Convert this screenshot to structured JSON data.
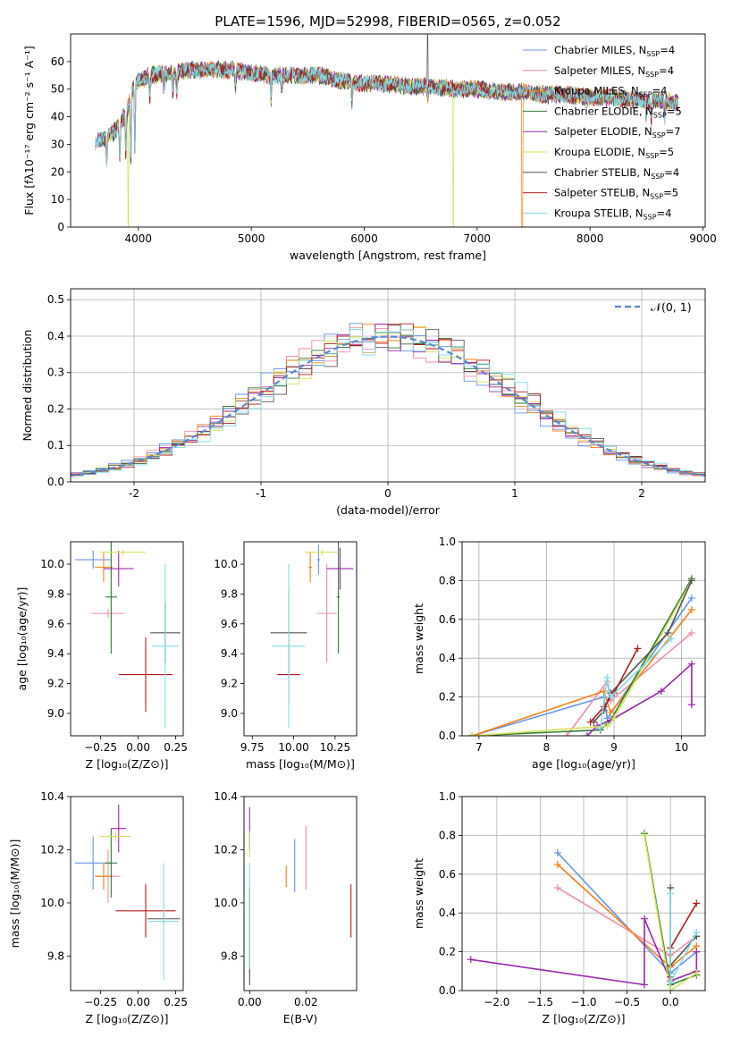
{
  "figure": {
    "title": "PLATE=1596, MJD=52998, FIBERID=0565, z=0.052"
  },
  "colors": {
    "chabrier_miles": "#6495ed",
    "salpeter_miles": "#f08cac",
    "kroupa_miles": "#ff7f0e",
    "chabrier_elodie": "#2e7d32",
    "salpeter_elodie": "#9c27b0",
    "kroupa_elodie": "#d4e157",
    "chabrier_stelib": "#555555",
    "salpeter_stelib": "#b71c1c",
    "kroupa_stelib": "#80deea"
  },
  "legend_spectrum": [
    {
      "key": "chabrier_miles",
      "label": "Chabrier MILES, N",
      "sub": "SSP",
      "tail": "=4"
    },
    {
      "key": "salpeter_miles",
      "label": "Salpeter MILES, N",
      "sub": "SSP",
      "tail": "=4"
    },
    {
      "key": "kroupa_miles",
      "label": "Kroupa MILES, N",
      "sub": "SSP",
      "tail": "=4"
    },
    {
      "key": "chabrier_elodie",
      "label": "Chabrier ELODIE, N",
      "sub": "SSP",
      "tail": "=5"
    },
    {
      "key": "salpeter_elodie",
      "label": "Salpeter ELODIE, N",
      "sub": "SSP",
      "tail": "=7"
    },
    {
      "key": "kroupa_elodie",
      "label": "Kroupa ELODIE, N",
      "sub": "SSP",
      "tail": "=5"
    },
    {
      "key": "chabrier_stelib",
      "label": "Chabrier STELIB, N",
      "sub": "SSP",
      "tail": "=4"
    },
    {
      "key": "salpeter_stelib",
      "label": "Salpeter STELIB, N",
      "sub": "SSP",
      "tail": "=5"
    },
    {
      "key": "kroupa_stelib",
      "label": "Kroupa STELIB, N",
      "sub": "SSP",
      "tail": "=4"
    }
  ],
  "legend_hist": {
    "label": "𝒩(0, 1)"
  },
  "chart_data": [
    {
      "id": "spectrum",
      "type": "line",
      "xlabel": "wavelength [Angstrom, rest frame]",
      "ylabel": "Flux [fλ10⁻¹⁷ erg cm⁻² s⁻¹ A⁻¹]",
      "xlim": [
        3400,
        9020
      ],
      "ylim": [
        0,
        70
      ],
      "xticks": [
        4000,
        5000,
        6000,
        7000,
        8000,
        9000
      ],
      "yticks": [
        0,
        10,
        20,
        30,
        40,
        50,
        60
      ],
      "x_range": [
        3620,
        8780
      ],
      "continuum": [
        [
          3620,
          31
        ],
        [
          3700,
          32
        ],
        [
          3800,
          35
        ],
        [
          3900,
          42
        ],
        [
          3960,
          52
        ],
        [
          4100,
          55
        ],
        [
          4300,
          56
        ],
        [
          4500,
          57
        ],
        [
          4800,
          57
        ],
        [
          5000,
          56
        ],
        [
          5200,
          55
        ],
        [
          5400,
          55
        ],
        [
          5600,
          55
        ],
        [
          5800,
          53
        ],
        [
          6000,
          52
        ],
        [
          6200,
          52
        ],
        [
          6400,
          51
        ],
        [
          6600,
          51
        ],
        [
          6800,
          50
        ],
        [
          7000,
          50
        ],
        [
          7200,
          49
        ],
        [
          7400,
          49
        ],
        [
          7600,
          48
        ],
        [
          7800,
          48
        ],
        [
          8000,
          47
        ],
        [
          8200,
          47
        ],
        [
          8400,
          46
        ],
        [
          8600,
          46
        ],
        [
          8780,
          45
        ]
      ],
      "absorption_lines": [
        [
          3720,
          10
        ],
        [
          3835,
          12
        ],
        [
          3889,
          14
        ],
        [
          3934,
          25
        ],
        [
          3969,
          26
        ],
        [
          4102,
          8
        ],
        [
          4227,
          6
        ],
        [
          4305,
          8
        ],
        [
          4340,
          7
        ],
        [
          4861,
          6
        ],
        [
          5175,
          9
        ],
        [
          5270,
          5
        ],
        [
          5892,
          7
        ],
        [
          6563,
          4
        ],
        [
          8498,
          6
        ],
        [
          8542,
          8
        ],
        [
          8662,
          7
        ]
      ],
      "spikes": [
        {
          "x": 6563,
          "y": 70,
          "series": "chabrier_stelib"
        }
      ],
      "dropouts": [
        {
          "x": 3910,
          "series": "kroupa_elodie"
        },
        {
          "x": 6790,
          "series": "kroupa_elodie"
        },
        {
          "x": 7400,
          "series": "kroupa_miles"
        }
      ]
    },
    {
      "id": "residuals",
      "type": "step",
      "xlabel": "(data-model)/error",
      "ylabel": "Normed distribution",
      "xlim": [
        -2.5,
        2.5
      ],
      "ylim": [
        0,
        0.53
      ],
      "xticks": [
        -2,
        -1,
        0,
        1,
        2
      ],
      "yticks": [
        0.0,
        0.1,
        0.2,
        0.3,
        0.4,
        0.5
      ],
      "grid": true,
      "legend": "top-right",
      "bin_width": 0.1
    },
    {
      "id": "z_age",
      "type": "errorbar",
      "xlabel": "Z [log₁₀(Z/Z⊙)]",
      "ylabel": "age  [log₁₀(age/yr)]",
      "xlim": [
        -0.45,
        0.3
      ],
      "ylim": [
        8.85,
        10.15
      ],
      "xticks": [
        -0.25,
        0.0,
        0.25
      ],
      "xticklabels": [
        "−0.25",
        "0.00",
        "0.25"
      ],
      "yticks": [
        9.0,
        9.2,
        9.4,
        9.6,
        9.8,
        10.0
      ],
      "points": [
        {
          "s": "chabrier_miles",
          "x": -0.3,
          "xe": 0.12,
          "y": 10.03,
          "ye": 0.06
        },
        {
          "s": "salpeter_miles",
          "x": -0.2,
          "xe": 0.11,
          "y": 9.67,
          "ye": 0.03
        },
        {
          "s": "kroupa_miles",
          "x": -0.23,
          "xe": 0.06,
          "y": 9.98,
          "ye": 0.1
        },
        {
          "s": "chabrier_elodie",
          "x": -0.18,
          "xe": 0.04,
          "y": 9.78,
          "ye": 0.38
        },
        {
          "s": "salpeter_elodie",
          "x": -0.13,
          "xe": 0.1,
          "y": 9.97,
          "ye": 0.12
        },
        {
          "s": "kroupa_elodie",
          "x": -0.1,
          "xe": 0.15,
          "y": 10.08,
          "ye": 0.02
        },
        {
          "s": "chabrier_stelib",
          "x": 0.18,
          "xe": 0.1,
          "y": 9.54,
          "ye": 0.2
        },
        {
          "s": "salpeter_stelib",
          "x": 0.05,
          "xe": 0.18,
          "y": 9.26,
          "ye": 0.25
        },
        {
          "s": "kroupa_stelib",
          "x": 0.18,
          "xe": 0.09,
          "y": 9.45,
          "ye": 0.55
        }
      ]
    },
    {
      "id": "mass_age",
      "type": "errorbar",
      "xlabel": "mass [log₁₀(M/M⊙)]",
      "ylabel": "",
      "xlim": [
        9.7,
        10.38
      ],
      "ylim": [
        8.85,
        10.15
      ],
      "xticks": [
        9.75,
        10.0,
        10.25
      ],
      "xticklabels": [
        "9.75",
        "10.00",
        "10.25"
      ],
      "yticks": [
        9.0,
        9.2,
        9.4,
        9.6,
        9.8,
        10.0
      ],
      "points": [
        {
          "s": "chabrier_miles",
          "x": 10.15,
          "xe": 0.01,
          "y": 10.03,
          "ye": 0.1
        },
        {
          "s": "salpeter_miles",
          "x": 10.2,
          "xe": 0.06,
          "y": 9.67,
          "ye": 0.33
        },
        {
          "s": "kroupa_miles",
          "x": 10.1,
          "xe": 0.01,
          "y": 9.98,
          "ye": 0.1
        },
        {
          "s": "chabrier_elodie",
          "x": 10.27,
          "xe": 0.01,
          "y": 9.78,
          "ye": 0.38
        },
        {
          "s": "salpeter_elodie",
          "x": 10.28,
          "xe": 0.08,
          "y": 9.97,
          "ye": 0.14
        },
        {
          "s": "kroupa_elodie",
          "x": 10.17,
          "xe": 0.1,
          "y": 10.08,
          "ye": 0.02
        },
        {
          "s": "chabrier_stelib",
          "x": 9.97,
          "xe": 0.11,
          "y": 9.54,
          "ye": 0.3
        },
        {
          "s": "salpeter_stelib",
          "x": 9.97,
          "xe": 0.07,
          "y": 9.26,
          "ye": 0.2
        },
        {
          "s": "kroupa_stelib",
          "x": 9.97,
          "xe": 0.1,
          "y": 9.45,
          "ye": 0.55
        }
      ]
    },
    {
      "id": "age_weight",
      "type": "line",
      "xlabel": "age  [log₁₀(age/yr)]",
      "ylabel": "mass weight",
      "xlim": [
        6.75,
        10.35
      ],
      "ylim": [
        0,
        1.0
      ],
      "xticks": [
        7,
        8,
        9,
        10
      ],
      "yticks": [
        0.0,
        0.2,
        0.4,
        0.6,
        0.8,
        1.0
      ],
      "grid": true,
      "series": [
        {
          "s": "chabrier_miles",
          "points": [
            [
              6.9,
              0.0
            ],
            [
              8.85,
              0.2
            ],
            [
              8.9,
              0.09
            ],
            [
              10.15,
              0.71
            ]
          ]
        },
        {
          "s": "salpeter_miles",
          "points": [
            [
              8.3,
              0.0
            ],
            [
              8.9,
              0.28
            ],
            [
              8.95,
              0.18
            ],
            [
              10.15,
              0.53
            ]
          ]
        },
        {
          "s": "kroupa_miles",
          "points": [
            [
              6.9,
              0.0
            ],
            [
              8.85,
              0.23
            ],
            [
              8.95,
              0.12
            ],
            [
              10.15,
              0.65
            ]
          ]
        },
        {
          "s": "chabrier_elodie",
          "points": [
            [
              6.9,
              0.0
            ],
            [
              8.8,
              0.03
            ],
            [
              8.95,
              0.08
            ],
            [
              10.15,
              0.81
            ]
          ]
        },
        {
          "s": "salpeter_elodie",
          "points": [
            [
              8.6,
              0.0
            ],
            [
              8.75,
              0.05
            ],
            [
              8.95,
              0.08
            ],
            [
              9.7,
              0.23
            ],
            [
              10.15,
              0.37
            ],
            [
              10.15,
              0.16
            ]
          ]
        },
        {
          "s": "kroupa_elodie",
          "points": [
            [
              6.9,
              0.0
            ],
            [
              8.9,
              0.05
            ],
            [
              9.0,
              0.09
            ],
            [
              10.15,
              0.8
            ]
          ]
        },
        {
          "s": "chabrier_stelib",
          "points": [
            [
              8.7,
              0.07
            ],
            [
              8.85,
              0.13
            ],
            [
              8.95,
              0.22
            ],
            [
              9.8,
              0.53
            ],
            [
              10.15,
              0.8
            ]
          ]
        },
        {
          "s": "salpeter_stelib",
          "points": [
            [
              8.65,
              0.07
            ],
            [
              8.85,
              0.15
            ],
            [
              9.0,
              0.22
            ],
            [
              9.35,
              0.45
            ]
          ]
        },
        {
          "s": "kroupa_stelib",
          "points": [
            [
              8.8,
              0.04
            ],
            [
              8.9,
              0.3
            ],
            [
              8.95,
              0.2
            ],
            [
              9.85,
              0.5
            ]
          ]
        }
      ]
    },
    {
      "id": "z_mass",
      "type": "errorbar",
      "xlabel": "Z [log₁₀(Z/Z⊙)]",
      "ylabel": "mass [log₁₀(M/M⊙)]",
      "xlim": [
        -0.45,
        0.3
      ],
      "ylim": [
        9.67,
        10.4
      ],
      "xticks": [
        -0.25,
        0.0,
        0.25
      ],
      "xticklabels": [
        "−0.25",
        "0.00",
        "0.25"
      ],
      "yticks": [
        9.8,
        10.0,
        10.2,
        10.4
      ],
      "yticklabels": [
        "9.8",
        "10.0",
        "10.2",
        "10.4"
      ],
      "points": [
        {
          "s": "chabrier_miles",
          "x": -0.3,
          "xe": 0.12,
          "y": 10.15,
          "ye": 0.1
        },
        {
          "s": "salpeter_miles",
          "x": -0.2,
          "xe": 0.08,
          "y": 10.1,
          "ye": 0.1
        },
        {
          "s": "kroupa_miles",
          "x": -0.23,
          "xe": 0.06,
          "y": 10.1,
          "ye": 0.05
        },
        {
          "s": "chabrier_elodie",
          "x": -0.18,
          "xe": 0.04,
          "y": 10.15,
          "ye": 0.13
        },
        {
          "s": "salpeter_elodie",
          "x": -0.13,
          "xe": 0.05,
          "y": 10.28,
          "ye": 0.09
        },
        {
          "s": "kroupa_elodie",
          "x": -0.15,
          "xe": 0.1,
          "y": 10.25,
          "ye": 0.02
        },
        {
          "s": "chabrier_stelib",
          "x": 0.17,
          "xe": 0.11,
          "y": 9.94,
          "ye": 0.02
        },
        {
          "s": "salpeter_stelib",
          "x": 0.05,
          "xe": 0.2,
          "y": 9.97,
          "ye": 0.1
        },
        {
          "s": "kroupa_stelib",
          "x": 0.17,
          "xe": 0.1,
          "y": 9.93,
          "ye": 0.22
        }
      ]
    },
    {
      "id": "ebv_mass",
      "type": "errorbar",
      "xlabel": "E(B-V)",
      "ylabel": "",
      "xlim": [
        -0.002,
        0.038
      ],
      "ylim": [
        9.67,
        10.4
      ],
      "xticks": [
        0.0,
        0.02
      ],
      "xticklabels": [
        "0.00",
        "0.02"
      ],
      "yticks": [
        9.8,
        10.0,
        10.2,
        10.4
      ],
      "yticklabels": [
        "9.8",
        "10.0",
        "10.2",
        "10.4"
      ],
      "points": [
        {
          "s": "chabrier_miles",
          "x": 0.016,
          "xe": 0.0,
          "y": 10.14,
          "ye": 0.1
        },
        {
          "s": "salpeter_miles",
          "x": 0.02,
          "xe": 0.0,
          "y": 10.17,
          "ye": 0.12
        },
        {
          "s": "kroupa_miles",
          "x": 0.013,
          "xe": 0.0,
          "y": 10.1,
          "ye": 0.04
        },
        {
          "s": "chabrier_elodie",
          "x": 0.0,
          "xe": 0.0,
          "y": 9.9,
          "ye": 0.16
        },
        {
          "s": "salpeter_elodie",
          "x": 0.0,
          "xe": 0.0,
          "y": 10.28,
          "ye": 0.08
        },
        {
          "s": "kroupa_elodie",
          "x": 0.0,
          "xe": 0.0,
          "y": 10.22,
          "ye": 0.05
        },
        {
          "s": "chabrier_stelib",
          "x": 0.0,
          "xe": 0.0,
          "y": 9.72,
          "ye": 0.03
        },
        {
          "s": "salpeter_stelib",
          "x": 0.036,
          "xe": 0.0,
          "y": 9.97,
          "ye": 0.1
        },
        {
          "s": "kroupa_stelib",
          "x": 0.0,
          "xe": 0.0,
          "y": 9.95,
          "ye": 0.2
        }
      ]
    },
    {
      "id": "z_weight",
      "type": "line",
      "xlabel": "Z [log₁₀(Z/Z⊙)]",
      "ylabel": "mass weight",
      "xlim": [
        -2.4,
        0.4
      ],
      "ylim": [
        0,
        1.0
      ],
      "xticks": [
        -2.0,
        -1.5,
        -1.0,
        -0.5,
        0.0
      ],
      "xticklabels": [
        "−2.0",
        "−1.5",
        "−1.0",
        "−0.5",
        "0.0"
      ],
      "yticks": [
        0.0,
        0.2,
        0.4,
        0.6,
        0.8,
        1.0
      ],
      "grid": true,
      "series": [
        {
          "s": "chabrier_miles",
          "points": [
            [
              -1.3,
              0.71
            ],
            [
              0.0,
              0.09
            ],
            [
              0.3,
              0.2
            ]
          ]
        },
        {
          "s": "salpeter_miles",
          "points": [
            [
              -1.3,
              0.53
            ],
            [
              0.0,
              0.18
            ],
            [
              0.3,
              0.28
            ]
          ]
        },
        {
          "s": "kroupa_miles",
          "points": [
            [
              -1.3,
              0.65
            ],
            [
              0.0,
              0.12
            ],
            [
              0.3,
              0.23
            ]
          ]
        },
        {
          "s": "chabrier_elodie",
          "points": [
            [
              -0.3,
              0.81
            ],
            [
              0.0,
              0.03
            ],
            [
              0.3,
              0.08
            ]
          ]
        },
        {
          "s": "salpeter_elodie",
          "points": [
            [
              -2.3,
              0.16
            ],
            [
              -0.3,
              0.03
            ],
            [
              -0.3,
              0.37
            ],
            [
              0.0,
              0.05
            ],
            [
              0.3,
              0.1
            ],
            [
              0.3,
              0.2
            ]
          ]
        },
        {
          "s": "kroupa_elodie",
          "points": [
            [
              -0.3,
              0.8
            ],
            [
              0.0,
              0.0
            ],
            [
              0.3,
              0.09
            ]
          ]
        },
        {
          "s": "chabrier_stelib",
          "points": [
            [
              0.0,
              0.53
            ],
            [
              0.0,
              0.13
            ],
            [
              0.3,
              0.28
            ]
          ]
        },
        {
          "s": "salpeter_stelib",
          "points": [
            [
              0.0,
              0.07
            ],
            [
              0.0,
              0.22
            ],
            [
              0.3,
              0.45
            ]
          ]
        },
        {
          "s": "kroupa_stelib",
          "points": [
            [
              0.0,
              0.5
            ],
            [
              0.0,
              0.04
            ],
            [
              0.3,
              0.3
            ]
          ]
        }
      ]
    }
  ]
}
